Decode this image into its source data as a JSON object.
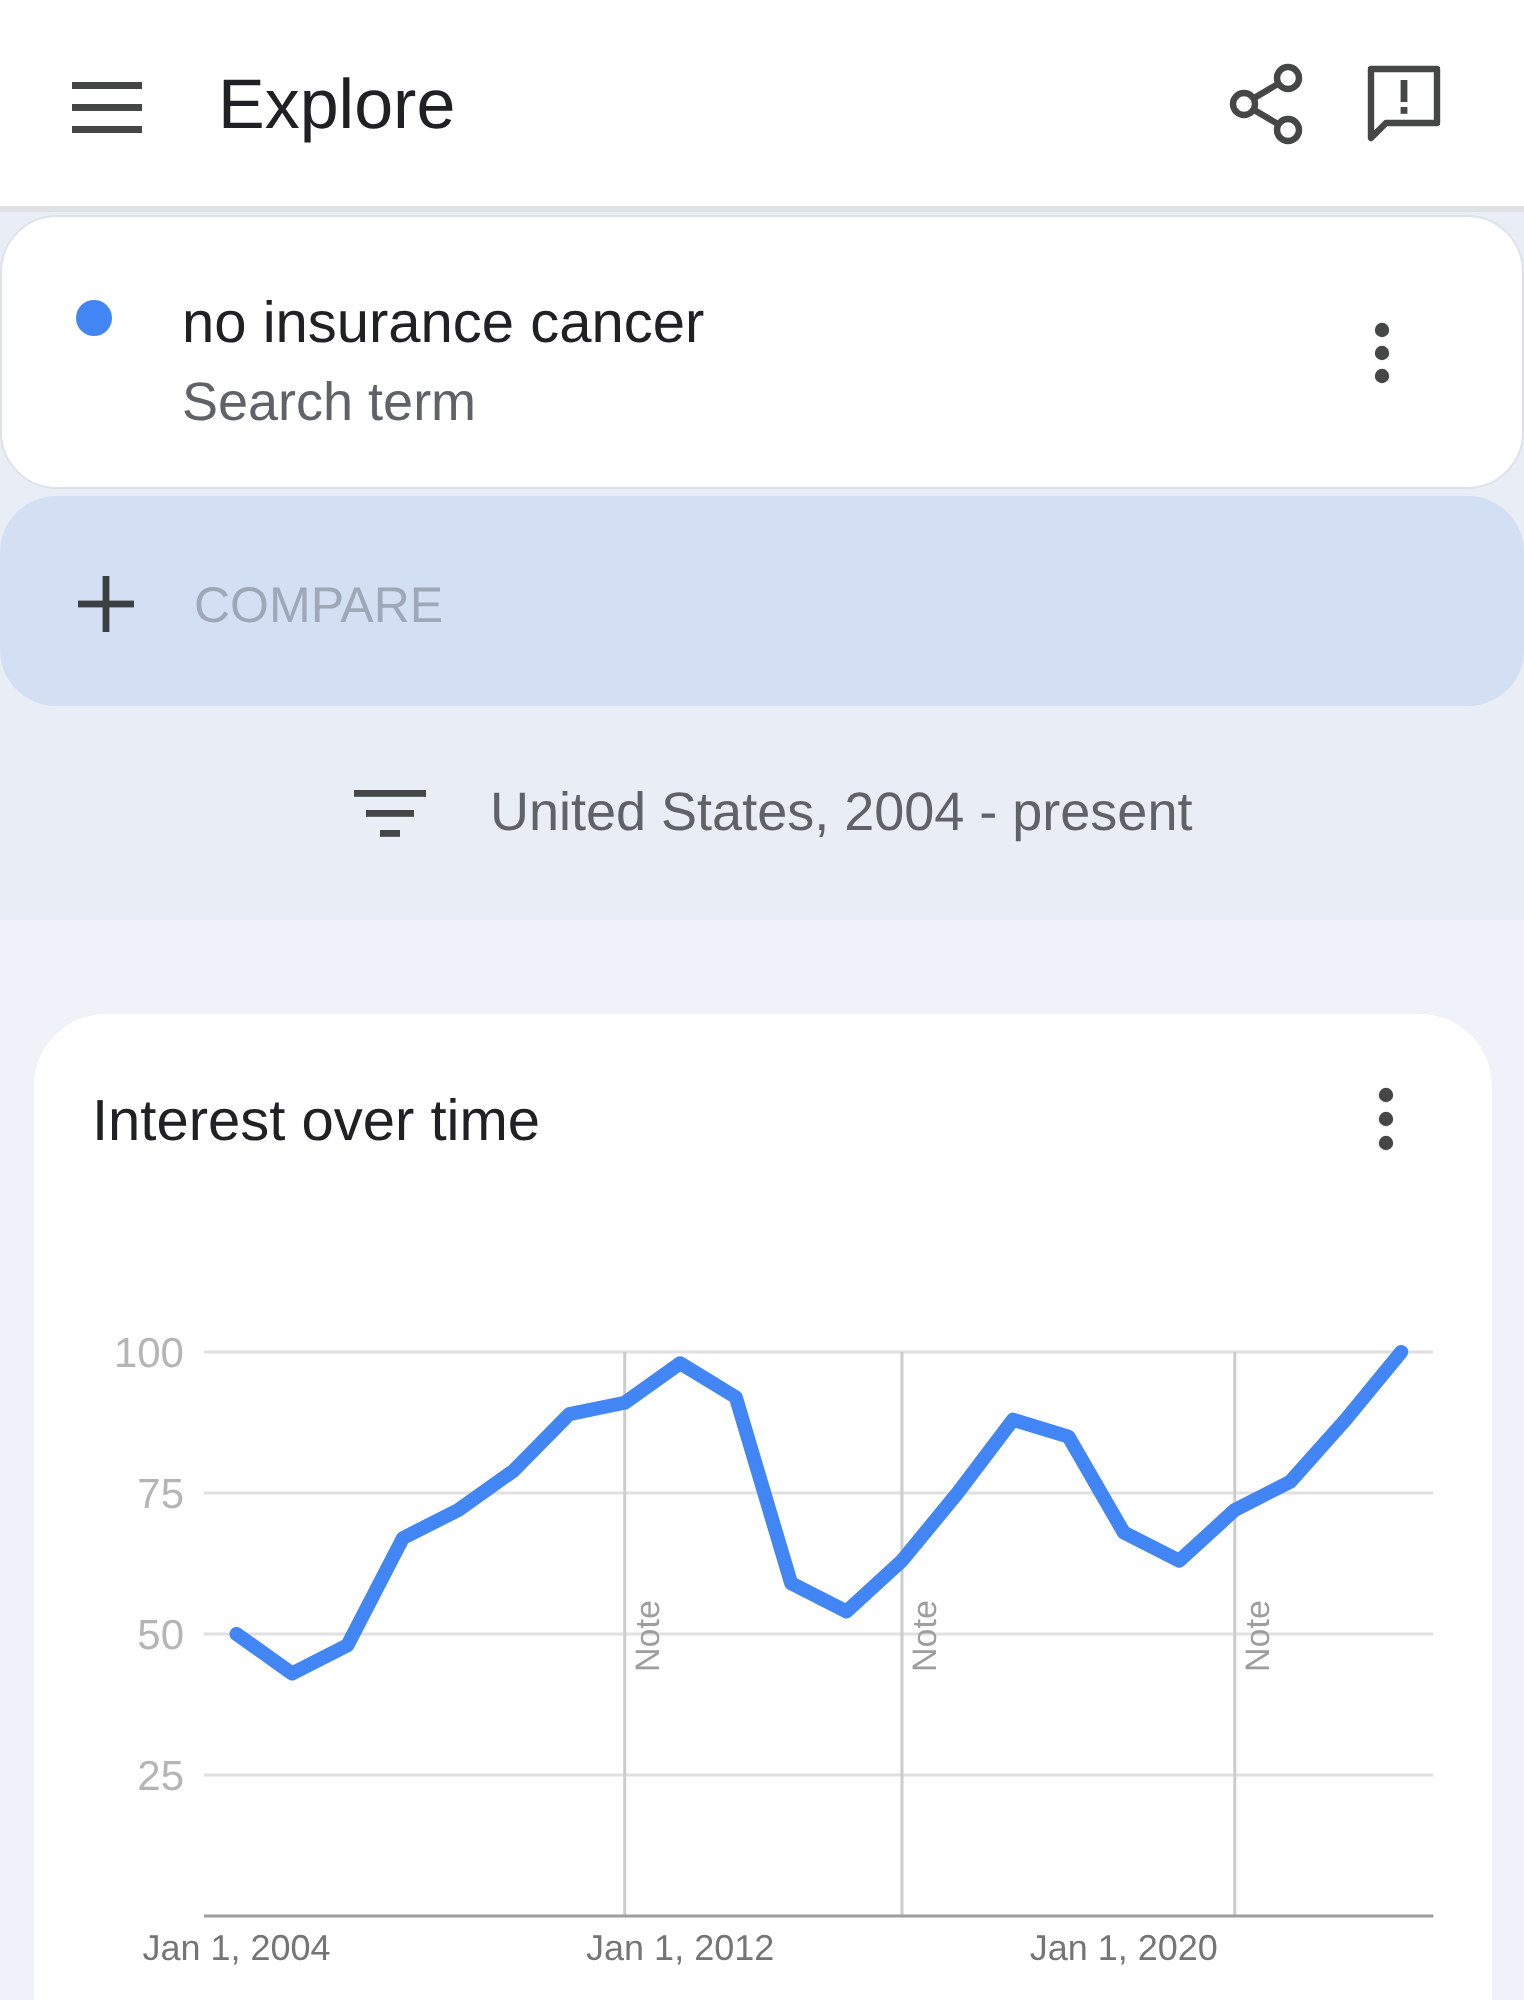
{
  "chart_data": {
    "type": "line",
    "title": "Interest over time",
    "annotations": [
      "Explore",
      "Search term",
      "COMPARE",
      "United States, 2004 - present"
    ],
    "x": [
      "2004",
      "2005",
      "2006",
      "2007",
      "2008",
      "2009",
      "2010",
      "2011",
      "2012",
      "2013",
      "2014",
      "2015",
      "2016",
      "2017",
      "2018",
      "2019",
      "2020",
      "2021",
      "2022",
      "2023",
      "2024",
      "2025"
    ],
    "series": [
      {
        "name": "no insurance cancer",
        "color": "#4285f4",
        "values": [
          50,
          43,
          48,
          67,
          72,
          79,
          89,
          91,
          98,
          92,
          59,
          54,
          63,
          75,
          88,
          85,
          68,
          63,
          72,
          77,
          88,
          100
        ]
      }
    ],
    "xlim": [
      "2003-06",
      "2025-08"
    ],
    "xticks": [
      {
        "value": "2004-01-01",
        "label": "Jan 1, 2004"
      },
      {
        "value": "2012-01-01",
        "label": "Jan 1, 2012"
      },
      {
        "value": "2020-01-01",
        "label": "Jan 1, 2020"
      }
    ],
    "ylim": [
      0,
      100
    ],
    "yticks": [
      25,
      50,
      75,
      100
    ],
    "grid": "y",
    "legend": "top",
    "ref_lines": [
      {
        "axis": "x",
        "value": "2011-01-01",
        "label": "Note",
        "color": "#cccccc"
      },
      {
        "axis": "x",
        "value": "2016-01-01",
        "label": "Note",
        "color": "#cccccc"
      },
      {
        "axis": "x",
        "value": "2022-01-01",
        "label": "Note",
        "color": "#cccccc"
      }
    ]
  }
}
